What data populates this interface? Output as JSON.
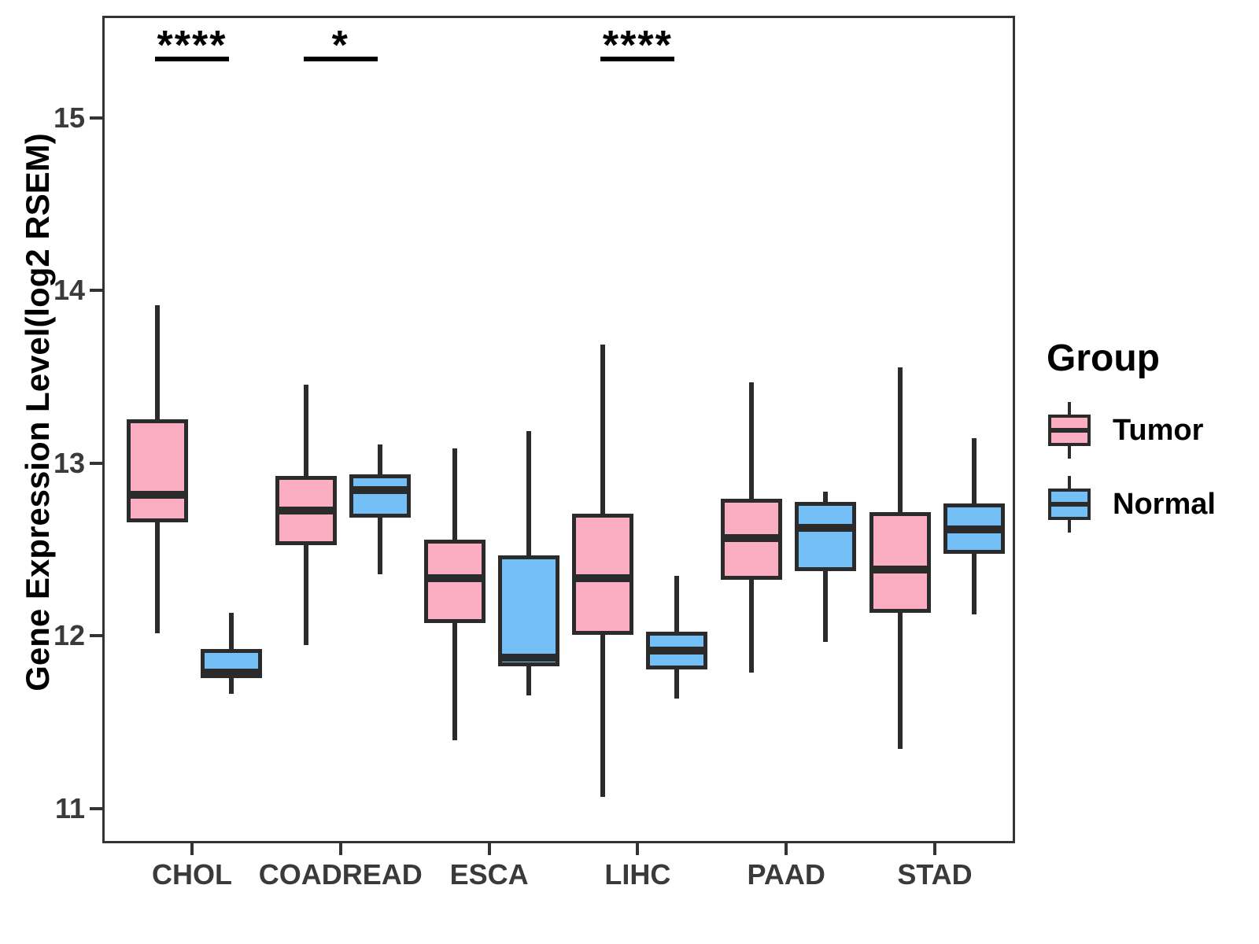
{
  "y_axis": {
    "title": "Gene Expression Level(log2 RSEM)",
    "ticks": [
      "15",
      "14",
      "13",
      "12",
      "11"
    ]
  },
  "x_axis": {
    "categories": [
      "CHOL",
      "COADREAD",
      "ESCA",
      "LIHC",
      "PAAD",
      "STAD"
    ]
  },
  "legend": {
    "title": "Group",
    "items": [
      {
        "label": "Tumor",
        "color": "#FBAEC1"
      },
      {
        "label": "Normal",
        "color": "#74BFF5"
      }
    ]
  },
  "significance": [
    {
      "category": "CHOL",
      "label": "****"
    },
    {
      "category": "COADREAD",
      "label": "*"
    },
    {
      "category": "LIHC",
      "label": "****"
    }
  ],
  "chart_data": {
    "type": "boxplot",
    "ylabel": "Gene Expression Level(log2 RSEM)",
    "ylim": [
      10.8,
      15.59
    ],
    "y_tick_values": [
      15,
      14,
      13,
      12,
      11
    ],
    "grid": false,
    "legend_position": "right",
    "categories": [
      "CHOL",
      "COADREAD",
      "ESCA",
      "LIHC",
      "PAAD",
      "STAD"
    ],
    "series": [
      {
        "name": "Tumor",
        "color": "#FBAEC1",
        "boxes": [
          {
            "min": 12.03,
            "q1": 12.67,
            "median": 12.83,
            "q3": 13.27,
            "max": 13.93
          },
          {
            "min": 11.96,
            "q1": 12.54,
            "median": 12.74,
            "q3": 12.94,
            "max": 13.47
          },
          {
            "min": 11.41,
            "q1": 12.09,
            "median": 12.35,
            "q3": 12.57,
            "max": 13.1
          },
          {
            "min": 11.08,
            "q1": 12.02,
            "median": 12.35,
            "q3": 12.72,
            "max": 13.7
          },
          {
            "min": 11.8,
            "q1": 12.34,
            "median": 12.58,
            "q3": 12.81,
            "max": 13.48
          },
          {
            "min": 11.36,
            "q1": 12.15,
            "median": 12.4,
            "q3": 12.73,
            "max": 13.57
          }
        ]
      },
      {
        "name": "Normal",
        "color": "#74BFF5",
        "boxes": [
          {
            "min": 11.68,
            "q1": 11.77,
            "median": 11.8,
            "q3": 11.94,
            "max": 12.15
          },
          {
            "min": 12.37,
            "q1": 12.7,
            "median": 12.86,
            "q3": 12.95,
            "max": 13.12
          },
          {
            "min": 11.67,
            "q1": 11.84,
            "median": 11.89,
            "q3": 12.48,
            "max": 13.2
          },
          {
            "min": 11.65,
            "q1": 11.82,
            "median": 11.93,
            "q3": 12.04,
            "max": 12.36
          },
          {
            "min": 11.98,
            "q1": 12.39,
            "median": 12.64,
            "q3": 12.79,
            "max": 12.85
          },
          {
            "min": 12.14,
            "q1": 12.49,
            "median": 12.63,
            "q3": 12.78,
            "max": 13.16
          }
        ]
      }
    ],
    "annotations": [
      {
        "category": "CHOL",
        "text": "****"
      },
      {
        "category": "COADREAD",
        "text": "*"
      },
      {
        "category": "LIHC",
        "text": "****"
      }
    ]
  }
}
